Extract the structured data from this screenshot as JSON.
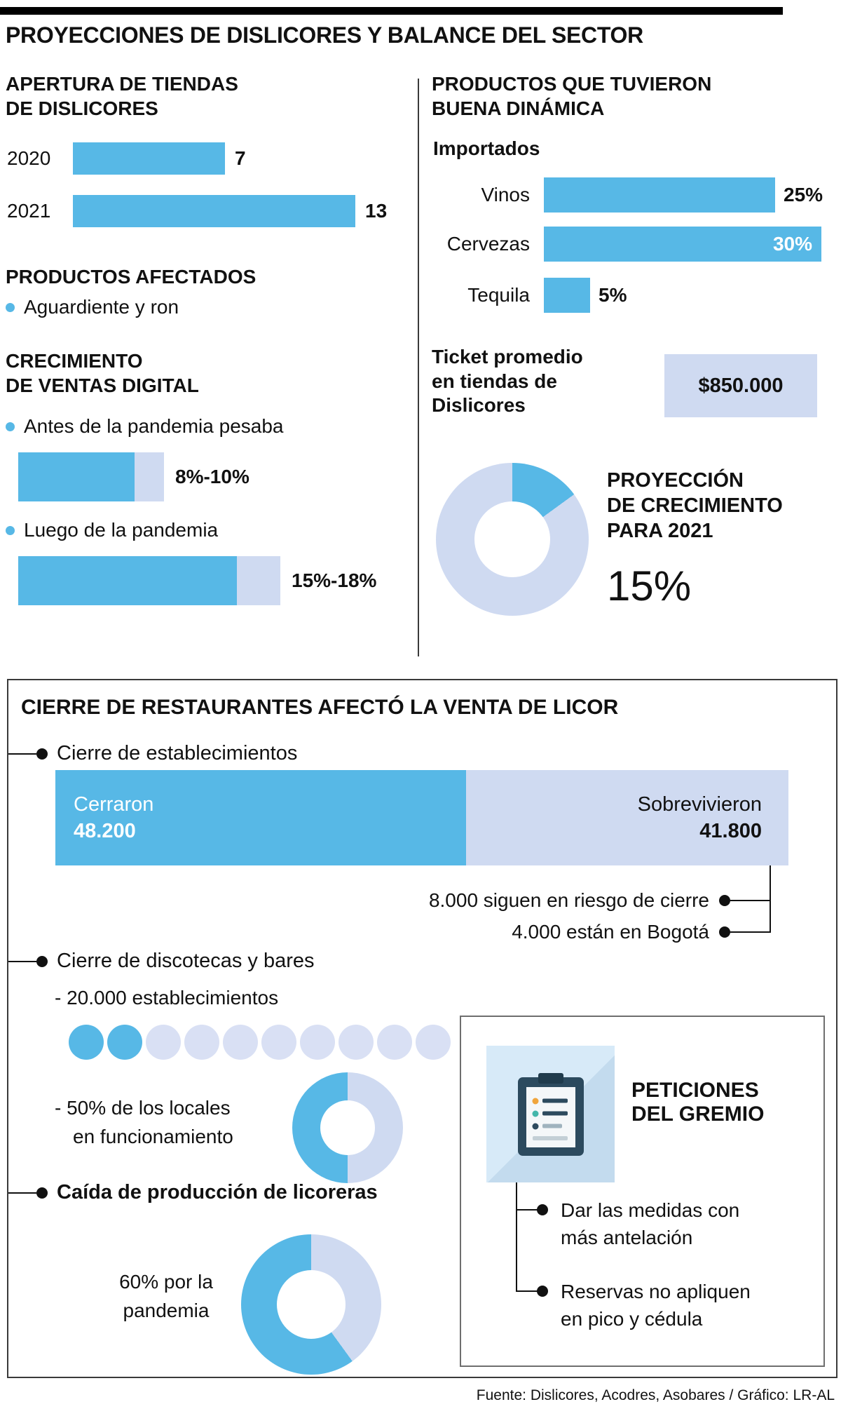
{
  "page": {
    "title": "PROYECCIONES DE DISLICORES Y BALANCE DEL SECTOR",
    "footer": "Fuente: Dislicores, Acodres, Asobares / Gráfico: LR-AL"
  },
  "colors": {
    "blue": "#57B8E6",
    "lavender": "#CFDAF1",
    "dot_light": "#D9E0F4",
    "square_blue": "#D7EAF8",
    "square_shadow": "#C3DBEE",
    "text": "#111111"
  },
  "icons": {
    "peticiones": "clipboard"
  },
  "apertura": {
    "title": "APERTURA DE TIENDAS\nDE DISLICORES",
    "rows": [
      {
        "label": "2020",
        "value": 7
      },
      {
        "label": "2021",
        "value": 13
      }
    ]
  },
  "afectados": {
    "title": "PRODUCTOS AFECTADOS",
    "item": "Aguardiente y ron"
  },
  "digital": {
    "title": "CRECIMIENTO\nDE VENTAS DIGITAL",
    "items": [
      {
        "label": "Antes de la pandemia pesaba",
        "range": "8%-10%",
        "low": 8,
        "spread": 2
      },
      {
        "label": "Luego de la pandemia",
        "range": "15%-18%",
        "low": 15,
        "spread": 3
      }
    ]
  },
  "dinamica": {
    "title": "PRODUCTOS QUE TUVIERON\nBUENA DINÁMICA",
    "subtitle": "Importados",
    "bars": [
      {
        "label": "Vinos",
        "value": "25%",
        "pct": 25
      },
      {
        "label": "Cervezas",
        "value": "30%",
        "pct": 30
      },
      {
        "label": "Tequila",
        "value": "5%",
        "pct": 5
      }
    ]
  },
  "ticket": {
    "label": "Ticket promedio\nen tiendas de\nDislicores",
    "value": "$850.000"
  },
  "proyeccion": {
    "title": "PROYECCIÓN\nDE CRECIMIENTO\nPARA 2021",
    "value": "15%",
    "donut": {
      "blue_pct": 15,
      "blue_first": true
    }
  },
  "cierre": {
    "title": "CIERRE DE RESTAURANTES AFECTÓ LA VENTA DE LICOR",
    "establecimientos": {
      "label": "Cierre de establecimientos",
      "closed_label": "Cerraron",
      "closed_value": "48.200",
      "closed_num": 48200,
      "survived_label": "Sobrevivieron",
      "survived_value": "41.800",
      "survived_num": 41800,
      "notes": [
        "8.000 siguen en riesgo de cierre",
        "4.000 están en Bogotá"
      ]
    },
    "discotecas": {
      "label": "Cierre de discotecas y bares",
      "count_note": "- 20.000 establecimientos",
      "dots": {
        "total": 10,
        "filled": 2
      },
      "operating_note": "- 50% de los locales\nen funcionamiento",
      "donut": {
        "blue_pct": 50,
        "blue_first": false
      }
    },
    "licoreras": {
      "label": "Caída de producción de licoreras",
      "note": "60% por la\npandemia",
      "donut": {
        "blue_pct": 60,
        "blue_first": false
      }
    }
  },
  "peticiones": {
    "title": "PETICIONES\nDEL GREMIO",
    "items": [
      "Dar las medidas con\nmás antelación",
      "Reservas no apliquen\nen pico y cédula"
    ]
  },
  "chart_data": [
    {
      "type": "bar",
      "title": "Apertura de tiendas de Dislicores",
      "orientation": "horizontal",
      "categories": [
        "2020",
        "2021"
      ],
      "values": [
        7,
        13
      ]
    },
    {
      "type": "bar",
      "title": "Crecimiento de ventas digital",
      "orientation": "horizontal",
      "categories": [
        "Antes de la pandemia pesaba",
        "Luego de la pandemia"
      ],
      "values": [
        "8%-10%",
        "15%-18%"
      ]
    },
    {
      "type": "bar",
      "title": "Productos que tuvieron buena dinámica - Importados",
      "orientation": "horizontal",
      "categories": [
        "Vinos",
        "Cervezas",
        "Tequila"
      ],
      "values": [
        25,
        30,
        5
      ],
      "unit": "%"
    },
    {
      "type": "pie",
      "title": "Proyección de crecimiento para 2021",
      "labels": [
        "Crecimiento proyectado",
        "Resto"
      ],
      "values": [
        15,
        85
      ]
    },
    {
      "type": "bar",
      "title": "Cierre de establecimientos",
      "orientation": "horizontal",
      "categories": [
        "Cerraron",
        "Sobrevivieron"
      ],
      "values": [
        48200,
        41800
      ],
      "annotations": [
        "8.000 siguen en riesgo de cierre",
        "4.000 están en Bogotá"
      ]
    },
    {
      "type": "pie",
      "title": "Cierre de discotecas y bares - 20.000 establecimientos - locales en funcionamiento",
      "labels": [
        "En funcionamiento",
        "Resto"
      ],
      "values": [
        50,
        50
      ]
    },
    {
      "type": "pie",
      "title": "Caída de producción de licoreras",
      "labels": [
        "Caída por la pandemia",
        "Resto"
      ],
      "values": [
        60,
        40
      ]
    }
  ]
}
